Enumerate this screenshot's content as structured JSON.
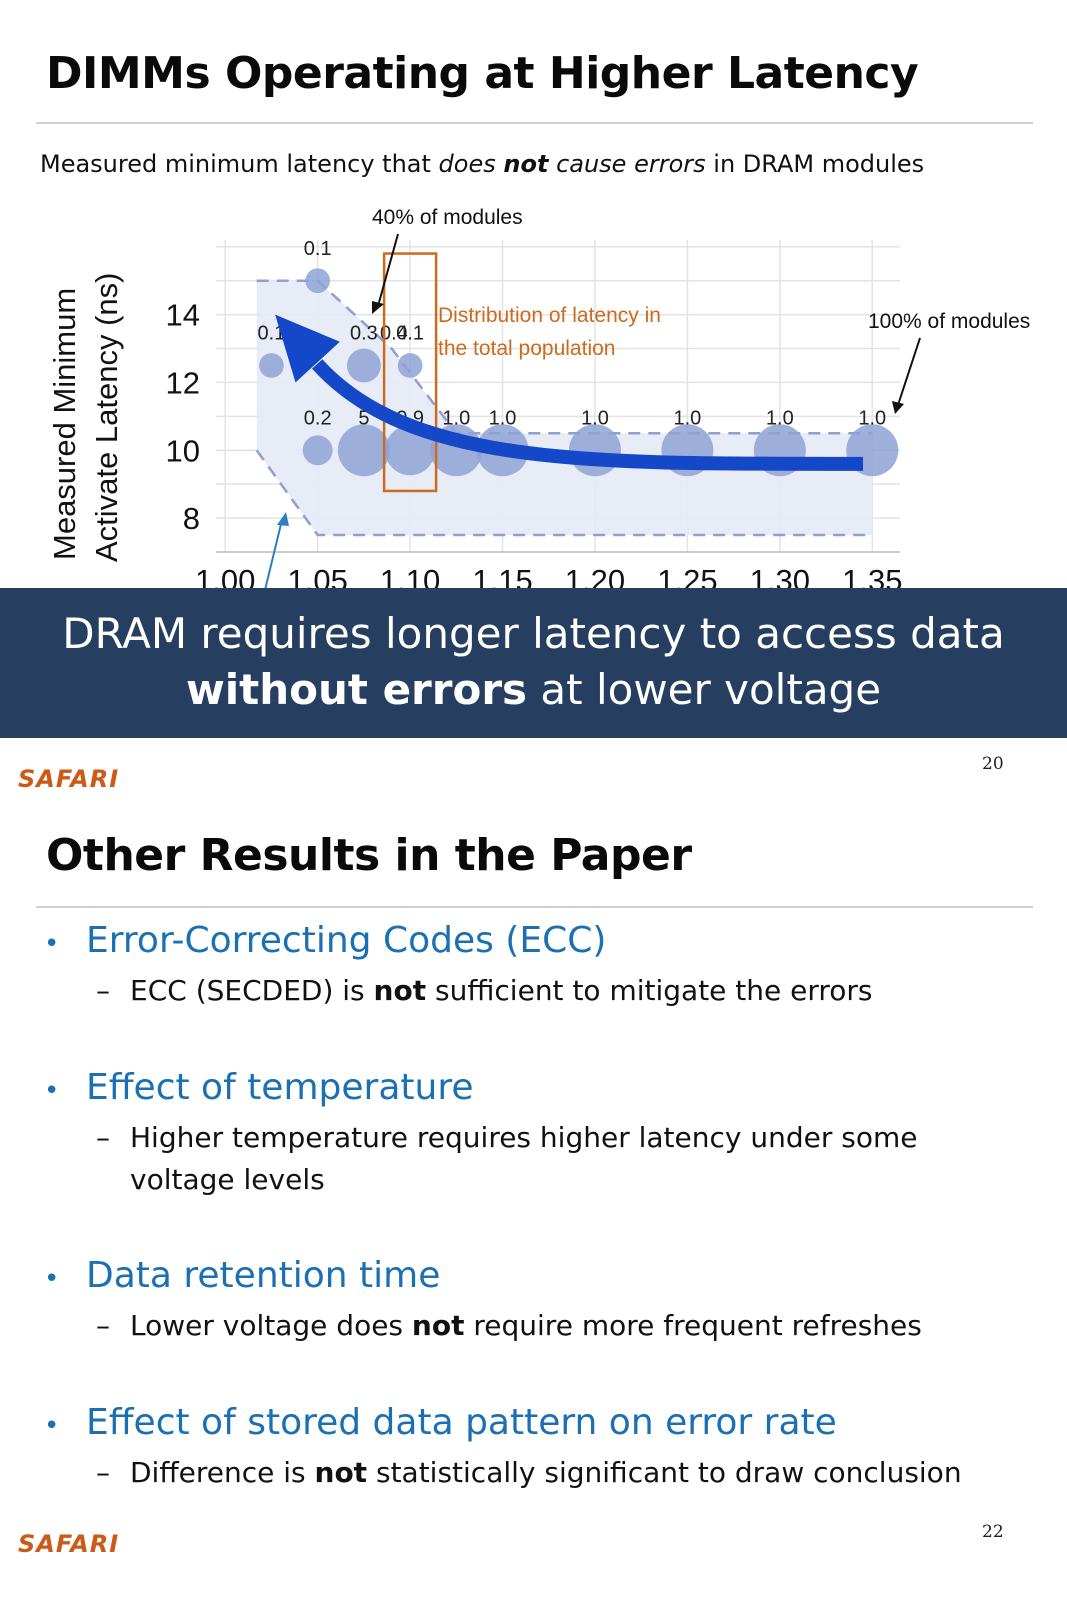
{
  "slide1": {
    "title": "DIMMs Operating at Higher Latency",
    "subtitle_parts": [
      "Measured minimum latency that ",
      "does",
      " ",
      "not",
      " ",
      "cause errors",
      " in DRAM modules"
    ],
    "banner_line1": "DRAM requires longer latency to access data",
    "banner_line2_bold": "without errors",
    "banner_line2_rest": " at lower voltage",
    "footer_brand": "SAFARI",
    "page_number": "20"
  },
  "chart_data": {
    "type": "scatter",
    "ylabel_line1": "Measured Minimum",
    "ylabel_line2": "Activate Latency (ns)",
    "y_ticks": [
      "8",
      "10",
      "12",
      "14"
    ],
    "x_ticks_visible": [
      "1.00",
      "1.05",
      "1.10",
      "1.15",
      "1.20",
      "1.25",
      "1.30",
      "1.35"
    ],
    "ylim": [
      7,
      16
    ],
    "xlim": [
      1.0,
      1.35
    ],
    "points": [
      {
        "x": 1.025,
        "y": 12.5,
        "value": "0.1",
        "label_y": 13.5
      },
      {
        "x": 1.05,
        "y": 15.0,
        "value": "0.1",
        "label_y": 16.0
      },
      {
        "x": 1.05,
        "y": 10.0,
        "value": "0.2",
        "label_y": 11.0
      },
      {
        "x": 1.075,
        "y": 12.5,
        "value": "0.3",
        "label_y": 13.5
      },
      {
        "x": 1.075,
        "y": 10.0,
        "value": "5",
        "label_y": 11.0
      },
      {
        "x": 1.1,
        "y": 12.5,
        "value": "0.1",
        "label_y": 13.5
      },
      {
        "x": 1.1,
        "y": 10.0,
        "value": "0.9",
        "label_y": 11.0
      },
      {
        "x": 1.125,
        "y": 10.0,
        "value": "1.0",
        "label_y": 11.0
      },
      {
        "x": 1.15,
        "y": 10.0,
        "value": "1.0",
        "label_y": 11.0
      },
      {
        "x": 1.2,
        "y": 10.0,
        "value": "1.0",
        "label_y": 11.0
      },
      {
        "x": 1.25,
        "y": 10.0,
        "value": "1.0",
        "label_y": 11.0
      },
      {
        "x": 1.3,
        "y": 10.0,
        "value": "1.0",
        "label_y": 11.0
      },
      {
        "x": 1.35,
        "y": 10.0,
        "value": "1.0",
        "label_y": 11.0
      }
    ],
    "extra_labels": [
      {
        "text": "0.4",
        "x": 1.075,
        "y": 13.5
      }
    ],
    "annotations": {
      "forty_pct": "40% of modules",
      "hundred_pct": "100% of modules",
      "distribution_line1": "Distribution of latency in",
      "distribution_line2": "the total population"
    },
    "colors": {
      "point": "#8ea3d4",
      "band": "#e6eaf5",
      "dash": "#8da0cf",
      "box": "#cc6a1e",
      "arrow": "#1448c8",
      "orange_text": "#cc6a1e"
    }
  },
  "slide2": {
    "title": "Other Results in the Paper",
    "bullets": [
      {
        "head": "Error-Correcting Codes (ECC)",
        "sub": [
          {
            "pre": "ECC (SECDED) is ",
            "bold": "not",
            "post": " sufficient to mitigate the errors"
          }
        ]
      },
      {
        "head": "Effect of temperature",
        "sub": [
          {
            "pre": "Higher temperature requires higher latency under some",
            "bold": "",
            "post": ""
          },
          {
            "pre": "voltage levels",
            "bold": "",
            "post": "",
            "continuation": true
          }
        ]
      },
      {
        "head": "Data retention time",
        "sub": [
          {
            "pre": "Lower voltage does ",
            "bold": "not",
            "post": " require more frequent refreshes"
          }
        ]
      },
      {
        "head": "Effect of stored data pattern on error rate",
        "sub": [
          {
            "pre": "Difference is ",
            "bold": "not",
            "post": " statistically significant to draw conclusion"
          }
        ]
      }
    ],
    "footer_brand": "SAFARI",
    "page_number": "22"
  }
}
